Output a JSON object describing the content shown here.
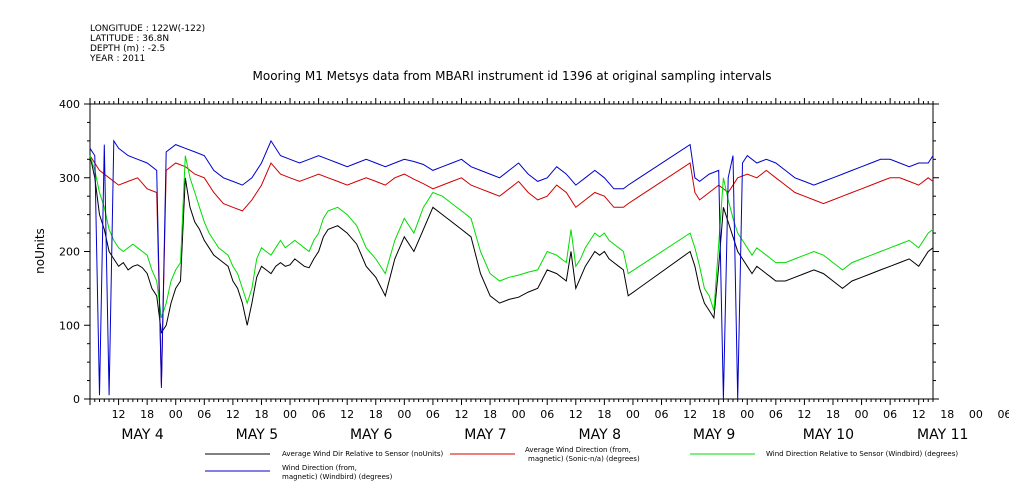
{
  "header": {
    "longitude": "LONGITUDE : 122W(-122)",
    "latitude": "LATITUDE : 36.8N",
    "depth": "DEPTH (m) : -2.5",
    "year": "YEAR : 2011"
  },
  "chart_data": {
    "type": "line",
    "title": "Mooring M1 Metsys data from MBARI instrument id 1396 at original sampling intervals",
    "ylabel": "noUnits",
    "xlabel": "",
    "ylim": [
      0,
      400
    ],
    "y_ticks": [
      "0",
      "100",
      "200",
      "300",
      "400"
    ],
    "x_hour_ticks": [
      "12",
      "18",
      "00",
      "06",
      "12",
      "18",
      "00",
      "06",
      "12",
      "18",
      "00",
      "06",
      "12",
      "18",
      "00",
      "06",
      "12",
      "18",
      "00",
      "06",
      "12",
      "18",
      "00",
      "06",
      "12",
      "18",
      "00",
      "06",
      "12",
      "18",
      "00",
      "06"
    ],
    "x_day_labels": [
      "MAY 4",
      "MAY 5",
      "MAY 6",
      "MAY 7",
      "MAY 8",
      "MAY 9",
      "MAY 10",
      "MAY 11"
    ],
    "xlim_hours": [
      0,
      177
    ],
    "grid": false,
    "legend_position": "bottom",
    "series": [
      {
        "name": "Average Wind Dir Relative to Sensor (noUnits)",
        "color": "#000000",
        "x": [
          0,
          1,
          2,
          3,
          4,
          5,
          6,
          7,
          8,
          9,
          10,
          11,
          12,
          13,
          14,
          15,
          16,
          17,
          18,
          19,
          20,
          21,
          22,
          23,
          24,
          25,
          26,
          27,
          28,
          29,
          30,
          31,
          32,
          33,
          34,
          35,
          36,
          37,
          38,
          39,
          40,
          41,
          42,
          43,
          44,
          45,
          46,
          47,
          48,
          49,
          50,
          52,
          54,
          56,
          58,
          60,
          62,
          64,
          66,
          68,
          70,
          72,
          74,
          76,
          78,
          80,
          82,
          84,
          86,
          88,
          90,
          92,
          94,
          96,
          98,
          100,
          101,
          102,
          103,
          104,
          105,
          106,
          107,
          108,
          109,
          110,
          111,
          112,
          113,
          126,
          127,
          128,
          129,
          130,
          131,
          132,
          133,
          134,
          135,
          136,
          137,
          138,
          139,
          140,
          141,
          142,
          143,
          144,
          146,
          148,
          150,
          152,
          154,
          156,
          158,
          160,
          162,
          164,
          166,
          168,
          170,
          172,
          174,
          176,
          177
        ],
        "y": [
          330,
          300,
          250,
          230,
          200,
          190,
          180,
          185,
          175,
          180,
          182,
          178,
          170,
          150,
          140,
          90,
          100,
          130,
          150,
          160,
          300,
          260,
          240,
          230,
          215,
          205,
          195,
          190,
          185,
          180,
          160,
          150,
          130,
          100,
          130,
          165,
          180,
          175,
          170,
          180,
          185,
          180,
          182,
          190,
          185,
          180,
          178,
          190,
          200,
          220,
          230,
          235,
          225,
          210,
          180,
          165,
          140,
          190,
          220,
          200,
          230,
          260,
          250,
          240,
          230,
          220,
          170,
          140,
          130,
          135,
          138,
          145,
          150,
          175,
          170,
          160,
          200,
          150,
          165,
          180,
          190,
          200,
          195,
          200,
          190,
          185,
          180,
          175,
          140,
          200,
          180,
          150,
          130,
          120,
          110,
          180,
          260,
          240,
          220,
          200,
          190,
          180,
          170,
          180,
          175,
          170,
          165,
          160,
          160,
          165,
          170,
          175,
          170,
          160,
          150,
          160,
          165,
          170,
          175,
          180,
          185,
          190,
          180,
          200,
          205
        ]
      },
      {
        "name": "Average Wind Direction (from, magnetic) (Sonic-n/a) (degrees)",
        "color": "#d00000",
        "x": [
          0,
          2,
          4,
          6,
          8,
          10,
          12,
          14,
          15,
          16,
          18,
          20,
          22,
          24,
          26,
          28,
          30,
          32,
          34,
          36,
          38,
          40,
          42,
          44,
          46,
          48,
          50,
          52,
          54,
          56,
          58,
          60,
          62,
          64,
          66,
          68,
          70,
          72,
          74,
          76,
          78,
          80,
          82,
          84,
          86,
          88,
          90,
          92,
          94,
          96,
          98,
          100,
          102,
          104,
          106,
          108,
          110,
          112,
          113,
          126,
          127,
          128,
          130,
          132,
          134,
          136,
          138,
          140,
          142,
          144,
          146,
          148,
          150,
          152,
          154,
          156,
          158,
          160,
          162,
          164,
          166,
          168,
          170,
          172,
          174,
          176,
          177
        ],
        "y": [
          330,
          310,
          300,
          290,
          295,
          300,
          285,
          280,
          20,
          310,
          320,
          315,
          305,
          300,
          280,
          265,
          260,
          255,
          270,
          290,
          320,
          305,
          300,
          295,
          300,
          305,
          300,
          295,
          290,
          295,
          300,
          295,
          290,
          300,
          305,
          298,
          292,
          285,
          290,
          295,
          300,
          290,
          285,
          280,
          275,
          285,
          295,
          280,
          270,
          275,
          290,
          280,
          260,
          270,
          280,
          275,
          260,
          260,
          265,
          320,
          280,
          270,
          280,
          290,
          280,
          300,
          305,
          300,
          310,
          300,
          290,
          280,
          275,
          270,
          265,
          270,
          275,
          280,
          285,
          290,
          295,
          300,
          300,
          295,
          290,
          300,
          295
        ]
      },
      {
        "name": "Wind Direction Relative to Sensor (Windbird) (degrees)",
        "color": "#00dd00",
        "x": [
          0,
          1,
          2,
          3,
          4,
          5,
          6,
          7,
          8,
          9,
          10,
          11,
          12,
          13,
          14,
          15,
          16,
          17,
          18,
          19,
          20,
          21,
          22,
          23,
          24,
          25,
          26,
          27,
          28,
          29,
          30,
          31,
          32,
          33,
          34,
          35,
          36,
          37,
          38,
          39,
          40,
          41,
          42,
          43,
          44,
          45,
          46,
          47,
          48,
          49,
          50,
          52,
          54,
          56,
          58,
          60,
          62,
          64,
          66,
          68,
          70,
          72,
          74,
          76,
          78,
          80,
          82,
          84,
          86,
          88,
          90,
          92,
          94,
          96,
          98,
          100,
          101,
          102,
          103,
          104,
          105,
          106,
          107,
          108,
          109,
          110,
          111,
          112,
          113,
          126,
          127,
          128,
          129,
          130,
          131,
          132,
          133,
          134,
          135,
          136,
          137,
          138,
          139,
          140,
          141,
          142,
          143,
          144,
          146,
          148,
          150,
          152,
          154,
          156,
          158,
          160,
          162,
          164,
          166,
          168,
          170,
          172,
          174,
          176,
          177
        ],
        "y": [
          330,
          310,
          280,
          260,
          230,
          215,
          205,
          200,
          205,
          210,
          205,
          200,
          195,
          175,
          160,
          110,
          130,
          160,
          175,
          185,
          330,
          300,
          280,
          260,
          240,
          225,
          215,
          205,
          200,
          195,
          180,
          170,
          150,
          130,
          150,
          190,
          205,
          200,
          195,
          205,
          215,
          205,
          210,
          215,
          210,
          205,
          200,
          215,
          225,
          245,
          255,
          260,
          250,
          235,
          205,
          190,
          170,
          215,
          245,
          225,
          260,
          280,
          275,
          265,
          255,
          245,
          200,
          170,
          160,
          165,
          168,
          172,
          175,
          200,
          195,
          185,
          230,
          180,
          190,
          205,
          215,
          225,
          220,
          225,
          215,
          210,
          205,
          200,
          170,
          225,
          205,
          180,
          150,
          140,
          120,
          210,
          300,
          270,
          245,
          225,
          215,
          205,
          195,
          205,
          200,
          195,
          190,
          185,
          185,
          190,
          195,
          200,
          195,
          185,
          175,
          185,
          190,
          195,
          200,
          205,
          210,
          215,
          205,
          225,
          230
        ]
      },
      {
        "name": "Wind Direction (from, magnetic) (Windbird) (degrees)",
        "color": "#0000cc",
        "x": [
          0,
          1,
          2,
          3,
          4,
          5,
          6,
          7,
          8,
          10,
          12,
          14,
          15,
          16,
          18,
          20,
          22,
          24,
          26,
          28,
          30,
          32,
          34,
          36,
          38,
          40,
          42,
          44,
          46,
          48,
          50,
          52,
          54,
          56,
          58,
          60,
          62,
          64,
          66,
          68,
          70,
          72,
          74,
          76,
          78,
          80,
          82,
          84,
          86,
          88,
          90,
          92,
          94,
          96,
          98,
          100,
          102,
          104,
          106,
          108,
          110,
          112,
          113,
          126,
          127,
          128,
          130,
          132,
          133,
          134,
          135,
          136,
          137,
          138,
          140,
          142,
          144,
          146,
          148,
          150,
          152,
          154,
          156,
          158,
          160,
          162,
          164,
          166,
          168,
          170,
          172,
          174,
          176,
          177
        ],
        "y": [
          340,
          330,
          5,
          345,
          5,
          350,
          340,
          335,
          330,
          325,
          320,
          310,
          15,
          335,
          345,
          340,
          335,
          330,
          310,
          300,
          295,
          290,
          300,
          320,
          350,
          330,
          325,
          320,
          325,
          330,
          325,
          320,
          315,
          320,
          325,
          320,
          315,
          320,
          325,
          322,
          318,
          310,
          315,
          320,
          325,
          315,
          310,
          305,
          300,
          310,
          320,
          305,
          295,
          300,
          315,
          305,
          290,
          300,
          310,
          300,
          285,
          285,
          290,
          345,
          300,
          295,
          305,
          310,
          0,
          300,
          330,
          0,
          320,
          330,
          320,
          325,
          320,
          310,
          300,
          295,
          290,
          295,
          300,
          305,
          310,
          315,
          320,
          325,
          325,
          320,
          315,
          320,
          320,
          330
        ]
      }
    ]
  }
}
